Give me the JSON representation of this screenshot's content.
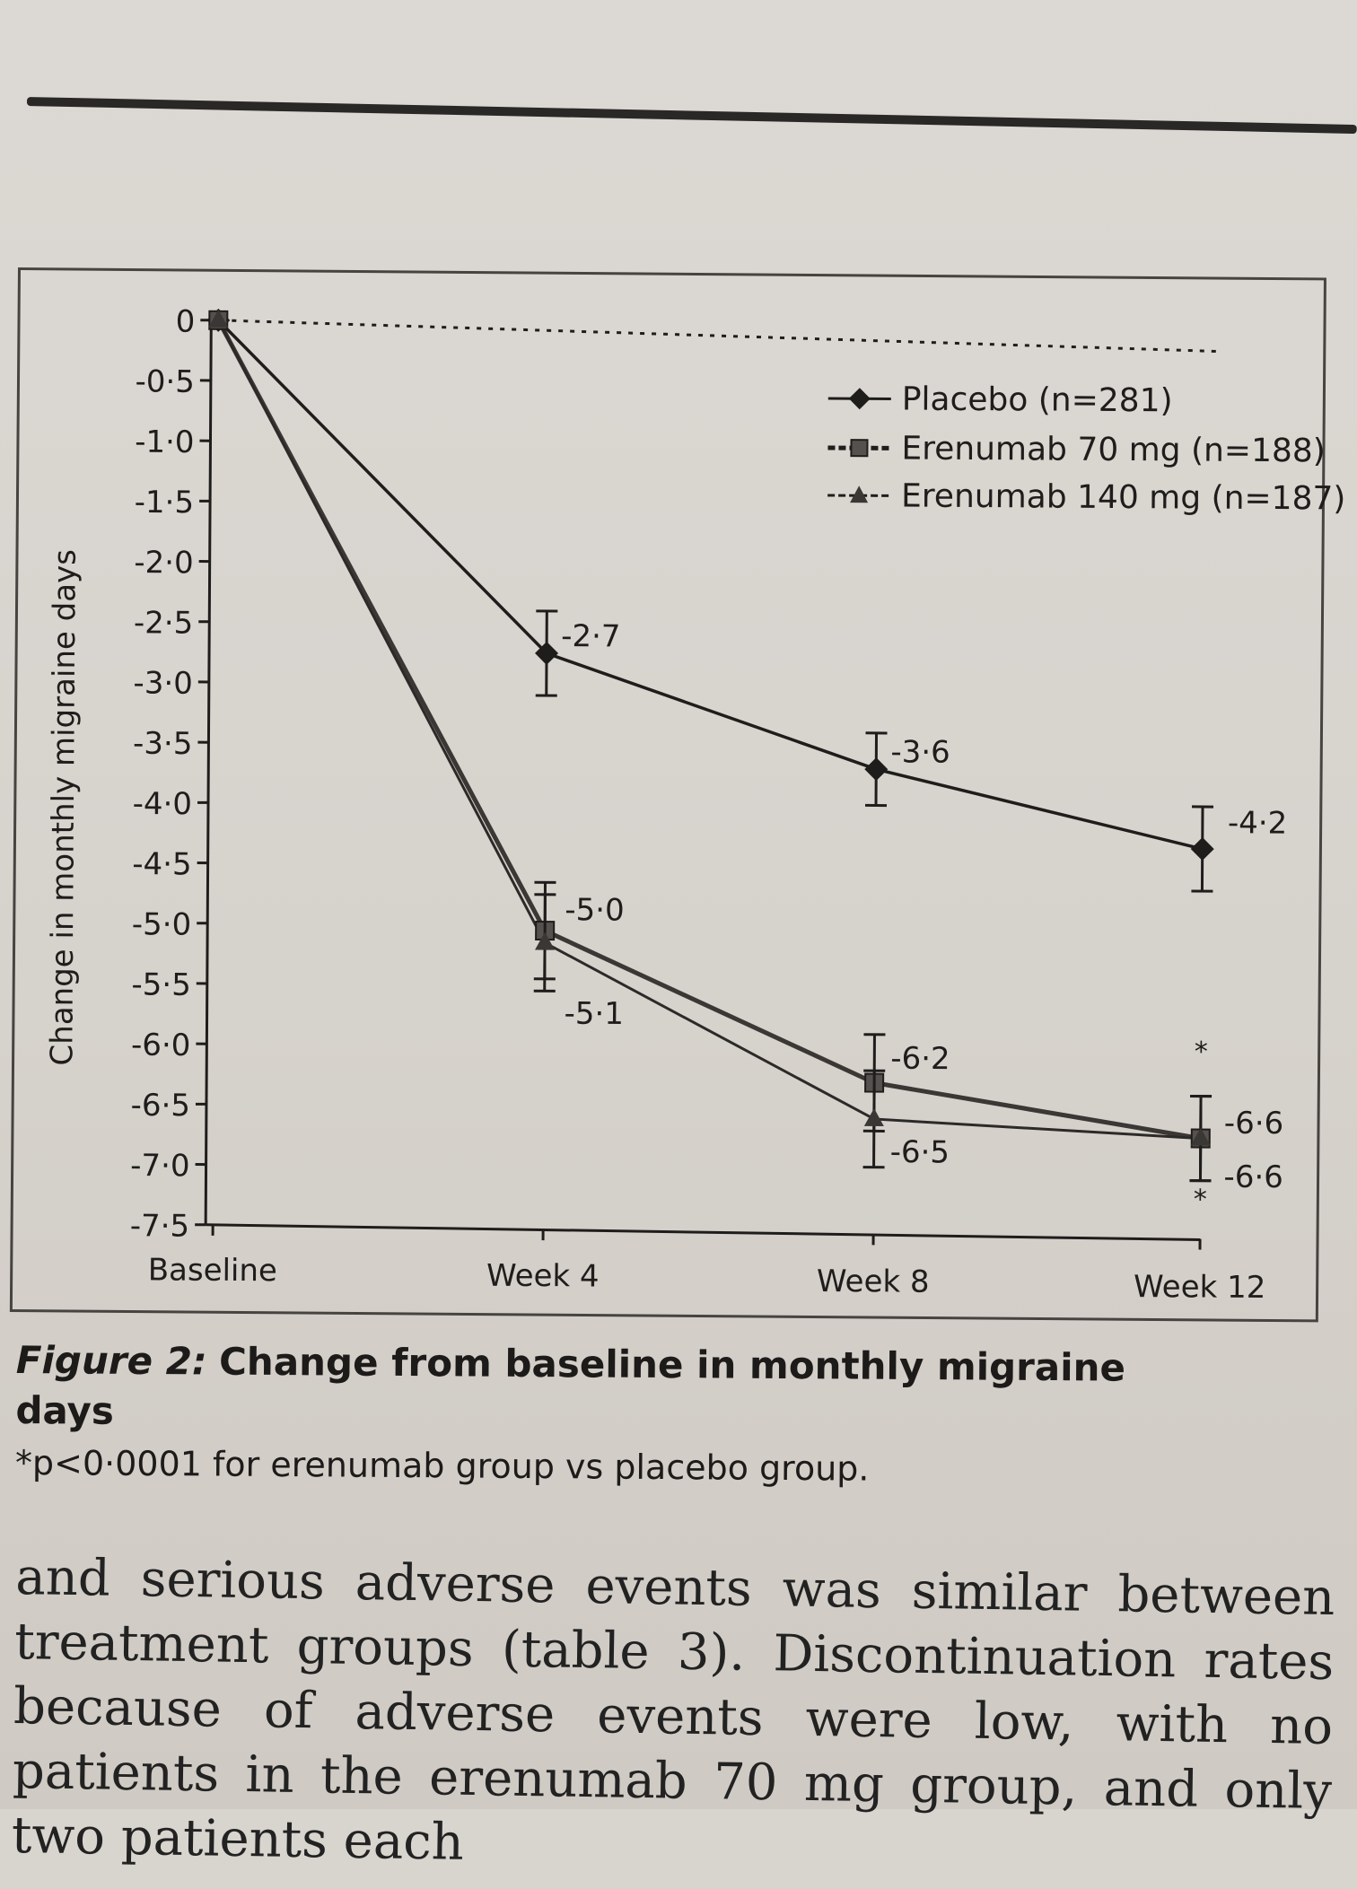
{
  "chart_data": {
    "type": "line",
    "ylabel": "Change in monthly migraine days",
    "xlabel": "",
    "categories": [
      "Baseline",
      "Week 4",
      "Week 8",
      "Week 12"
    ],
    "ylim": [
      -7.5,
      0
    ],
    "yticks": [
      "0",
      "-0·5",
      "-1·0",
      "-1·5",
      "-2·0",
      "-2·5",
      "-3·0",
      "-3·5",
      "-4·0",
      "-4·5",
      "-5·0",
      "-5·5",
      "-6·0",
      "-6·5",
      "-7·0",
      "-7·5"
    ],
    "reference_line_y": 0,
    "series": [
      {
        "name": "Placebo (n=281)",
        "marker": "diamond",
        "values": [
          0,
          -2.7,
          -3.6,
          -4.2
        ],
        "error": [
          0,
          0.35,
          0.3,
          0.35
        ],
        "labels": [
          "",
          "-2·7",
          "-3·6",
          "-4·2"
        ]
      },
      {
        "name": "Erenumab 70 mg (n=188)",
        "marker": "square",
        "values": [
          0,
          -5.0,
          -6.2,
          -6.6
        ],
        "error": [
          0,
          0.4,
          0.4,
          0.35
        ],
        "labels": [
          "",
          "-5·0",
          "-6·2",
          "-6·6"
        ]
      },
      {
        "name": "Erenumab 140 mg (n=187)",
        "marker": "triangle",
        "values": [
          0,
          -5.1,
          -6.5,
          -6.6
        ],
        "error": [
          0,
          0.4,
          0.4,
          0.35
        ],
        "labels": [
          "",
          "-5·1",
          "-6·5",
          "-6·6"
        ]
      }
    ],
    "significance_marks": [
      "*",
      "*"
    ]
  },
  "caption": {
    "label": "Figure 2:",
    "title": "Change from baseline in monthly migraine days",
    "footnote": "*p<0·0001 for erenumab group vs placebo group."
  },
  "body_text": "and serious adverse events was similar between treatment groups (table 3). Discontinuation rates because of adverse events were low, with no patients in the erenumab 70 mg group, and only two patients each"
}
